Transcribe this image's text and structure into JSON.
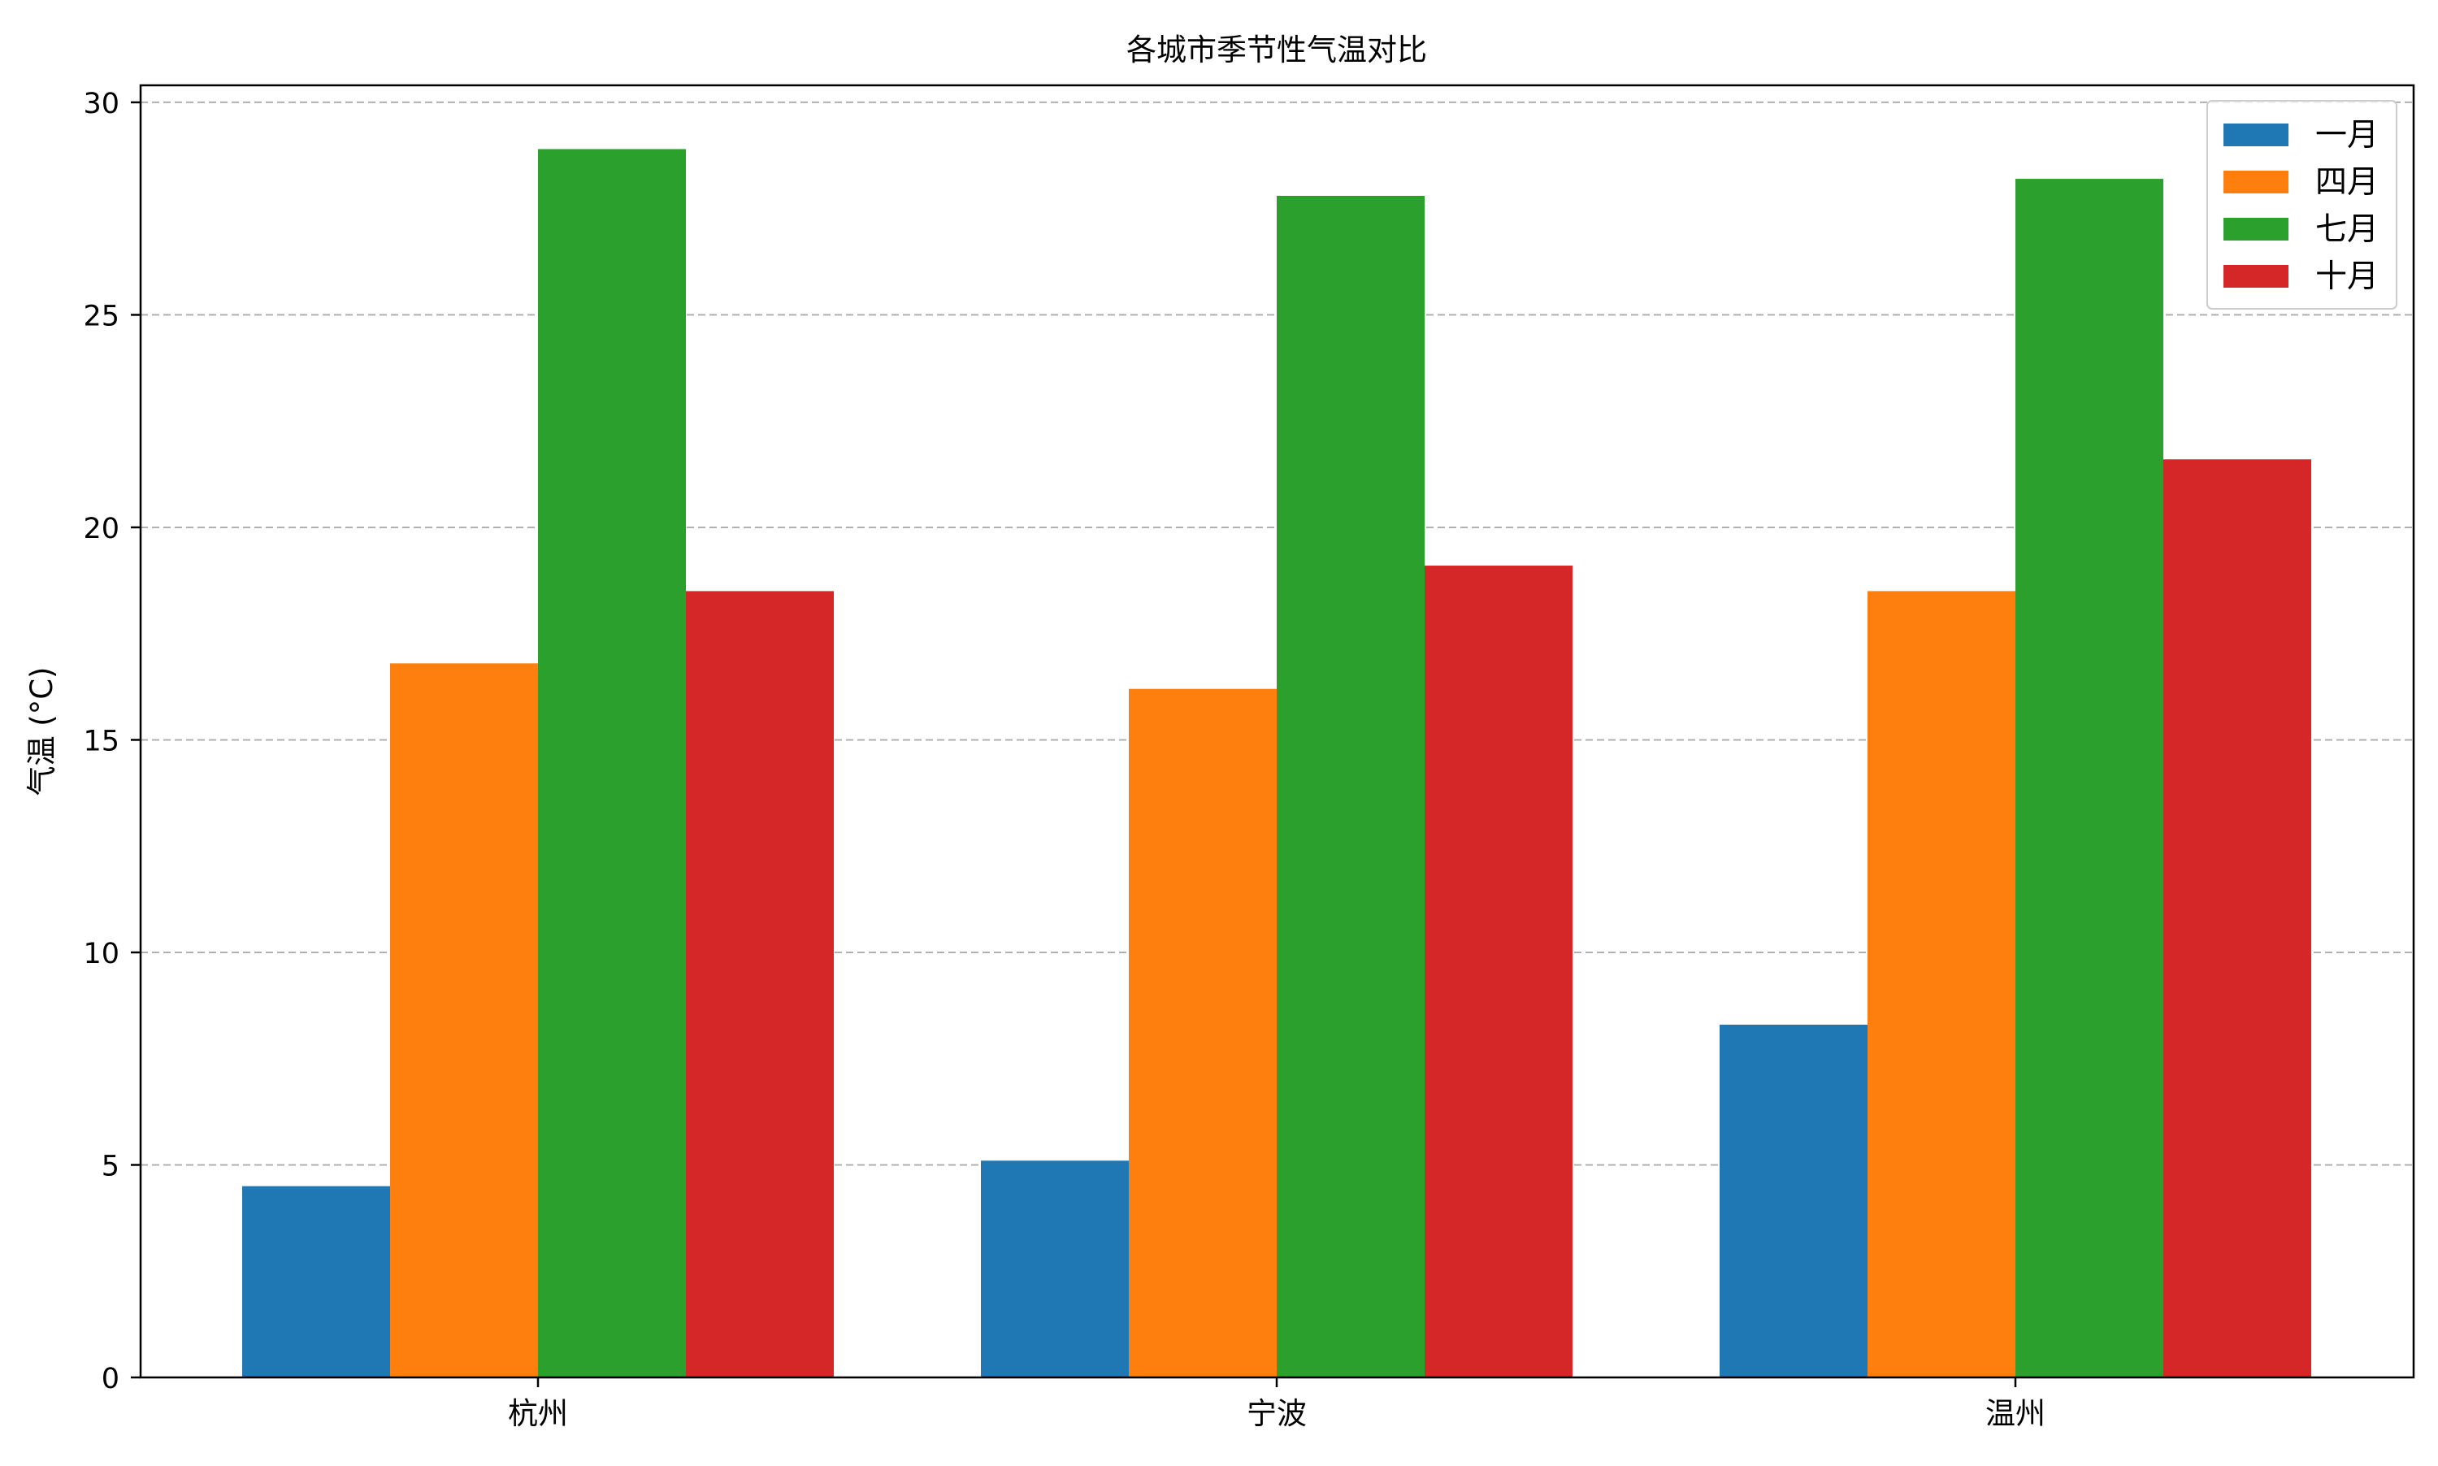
{
  "chart_data": {
    "type": "bar",
    "title": "各城市季节性气温对比",
    "xlabel": "",
    "ylabel": "气温 (°C)",
    "categories": [
      "杭州",
      "宁波",
      "温州"
    ],
    "series": [
      {
        "name": "一月",
        "color": "#1f77b4",
        "values": [
          4.5,
          5.1,
          8.3
        ]
      },
      {
        "name": "四月",
        "color": "#ff7f0e",
        "values": [
          16.8,
          16.2,
          18.5
        ]
      },
      {
        "name": "七月",
        "color": "#2ca02c",
        "values": [
          28.9,
          27.8,
          28.2
        ]
      },
      {
        "name": "十月",
        "color": "#d62728",
        "values": [
          18.5,
          19.1,
          21.6
        ]
      }
    ],
    "ylim": [
      0,
      30.4
    ],
    "yticks": [
      0,
      5,
      10,
      15,
      20,
      25,
      30
    ],
    "grid": "y-dashed",
    "legend_position": "top-right"
  }
}
